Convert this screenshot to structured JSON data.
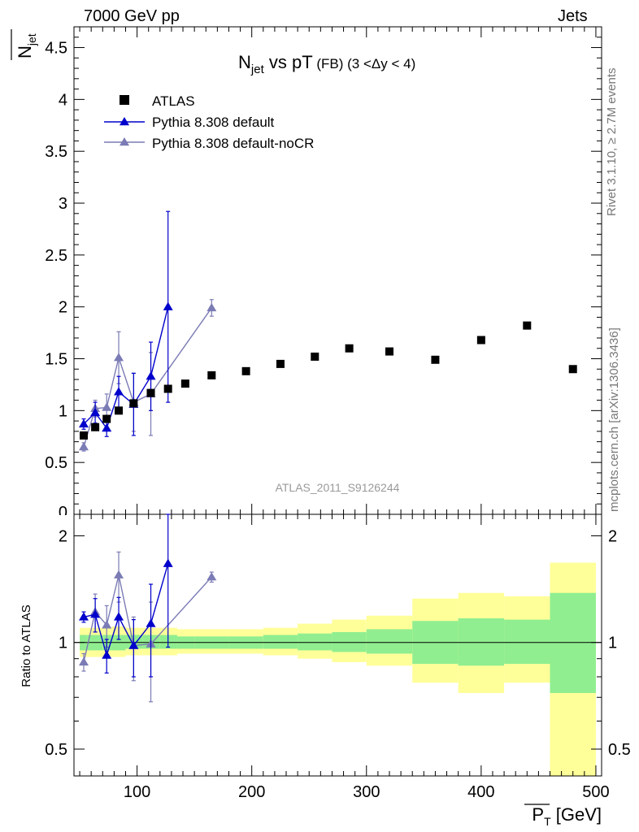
{
  "header": {
    "left": "7000 GeV pp",
    "right": "Jets"
  },
  "side_labels": {
    "rivet": "Rivet 3.1.10, ≥ 2.7M events",
    "mcplots": "mcplots.cern.ch [arXiv:1306.3436]"
  },
  "chart_data": [
    {
      "type": "scatter",
      "title": {
        "main": "N",
        "sub": "jet",
        "rest": " vs pT",
        "tag": "(FB)",
        "range": "(3 <Δy < 4)"
      },
      "watermark": "ATLAS_2011_S9126244",
      "ylabel": {
        "main": "N",
        "sub": "jet"
      },
      "xlim": [
        45,
        505
      ],
      "ylim": [
        0,
        4.7
      ],
      "yticks": [
        "0",
        "0.5",
        "1",
        "1.5",
        "2",
        "2.5",
        "3",
        "3.5",
        "4",
        "4.5"
      ],
      "legend_position": "top-left",
      "colors": {
        "atlas": "#000000",
        "default": "#0000cc",
        "nocr": "#7b7bb5"
      },
      "series": [
        {
          "name": "ATLAS",
          "style": "marker",
          "x": [
            53.5,
            63.5,
            73.5,
            84,
            97,
            112,
            127,
            142,
            165,
            195,
            225,
            255,
            285,
            320,
            360,
            400,
            440,
            480
          ],
          "y": [
            0.76,
            0.84,
            0.92,
            1.0,
            1.07,
            1.17,
            1.21,
            1.26,
            1.34,
            1.38,
            1.45,
            1.52,
            1.6,
            1.57,
            1.49,
            1.68,
            1.82,
            1.4
          ]
        },
        {
          "name": "Pythia 8.308 default",
          "style": "line-triangle",
          "x": [
            53.5,
            63.5,
            73.5,
            84,
            97,
            112,
            127
          ],
          "y": [
            0.87,
            0.98,
            0.83,
            1.18,
            1.06,
            1.33,
            2.0
          ],
          "yerr": [
            0.05,
            0.1,
            0.08,
            0.15,
            0.3,
            0.33,
            0.92
          ]
        },
        {
          "name": "Pythia 8.308 default-noCR",
          "style": "line-triangle",
          "x": [
            53.5,
            63.5,
            73.5,
            84,
            97,
            112,
            165
          ],
          "y": [
            0.65,
            1.02,
            1.03,
            1.51,
            1.08,
            1.16,
            1.99
          ],
          "yerr": [
            0.04,
            0.08,
            0.13,
            0.25,
            0.28,
            0.4,
            0.08
          ]
        }
      ]
    },
    {
      "type": "scatter",
      "ylabel": "Ratio to ATLAS",
      "xlabel": {
        "main": "P",
        "sub": "T",
        "unit": " [GeV]"
      },
      "xlim": [
        45,
        505
      ],
      "ylim": [
        0.42,
        2.3
      ],
      "log_y": true,
      "xticks": [
        "100",
        "200",
        "300",
        "400",
        "500"
      ],
      "yticks": [
        "0.5",
        "1",
        "2"
      ],
      "bands": {
        "edges": [
          50,
          57,
          70,
          78,
          90,
          105,
          120,
          135,
          150,
          180,
          210,
          240,
          270,
          300,
          340,
          380,
          420,
          460,
          500
        ],
        "inner_low": [
          0.95,
          0.95,
          0.95,
          0.95,
          0.96,
          0.96,
          0.96,
          0.96,
          0.96,
          0.96,
          0.96,
          0.95,
          0.94,
          0.93,
          0.87,
          0.86,
          0.87,
          0.72
        ],
        "inner_high": [
          1.05,
          1.05,
          1.05,
          1.05,
          1.05,
          1.05,
          1.05,
          1.04,
          1.04,
          1.04,
          1.05,
          1.06,
          1.07,
          1.09,
          1.15,
          1.17,
          1.16,
          1.38
        ],
        "outer_low": [
          0.91,
          0.91,
          0.91,
          0.91,
          0.92,
          0.92,
          0.92,
          0.93,
          0.93,
          0.93,
          0.92,
          0.9,
          0.88,
          0.86,
          0.77,
          0.72,
          0.77,
          0.4
        ],
        "outer_high": [
          1.1,
          1.1,
          1.1,
          1.11,
          1.1,
          1.1,
          1.1,
          1.09,
          1.09,
          1.09,
          1.1,
          1.13,
          1.16,
          1.19,
          1.33,
          1.38,
          1.35,
          1.68
        ],
        "inner_color": "#90ee90",
        "outer_color": "#ffff99"
      },
      "series": [
        {
          "name": "Pythia 8.308 default",
          "x": [
            53.5,
            63.5,
            73.5,
            84,
            97,
            112,
            127
          ],
          "y": [
            1.18,
            1.2,
            0.92,
            1.18,
            0.98,
            1.13,
            1.67
          ],
          "yerr": [
            0.04,
            0.13,
            0.1,
            0.16,
            0.18,
            0.33,
            0.7
          ]
        },
        {
          "name": "Pythia 8.308 default-noCR",
          "x": [
            53.5,
            63.5,
            73.5,
            84,
            97,
            112,
            165
          ],
          "y": [
            0.88,
            1.22,
            1.12,
            1.55,
            0.98,
            0.99,
            1.53
          ],
          "yerr": [
            0.05,
            0.15,
            0.15,
            0.25,
            0.2,
            0.31,
            0.05
          ]
        }
      ]
    }
  ]
}
